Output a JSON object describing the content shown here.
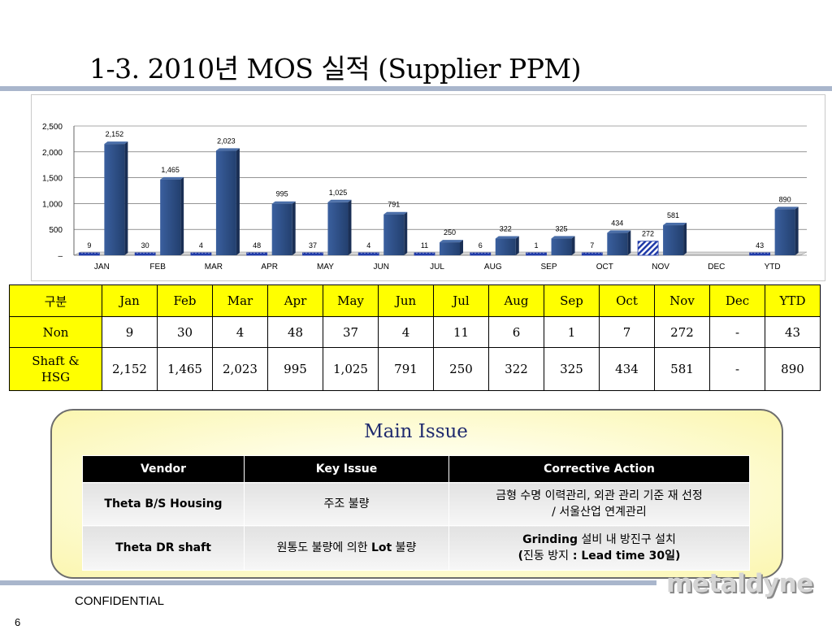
{
  "title": "1-3. 2010년 MOS 실적 (Supplier PPM)",
  "chart_data": {
    "type": "bar",
    "categories": [
      "JAN",
      "FEB",
      "MAR",
      "APR",
      "MAY",
      "JUN",
      "JUL",
      "AUG",
      "SEP",
      "OCT",
      "NOV",
      "DEC",
      "YTD"
    ],
    "series": [
      {
        "values": [
          9,
          30,
          4,
          48,
          37,
          4,
          11,
          6,
          1,
          7,
          272,
          null,
          43
        ],
        "color": "#1f3aa8",
        "pattern": "dots"
      },
      {
        "values": [
          2152,
          1465,
          2023,
          995,
          1025,
          791,
          250,
          322,
          325,
          434,
          581,
          null,
          890
        ],
        "color": "#2d4f88"
      }
    ],
    "nov_non_pattern": "diagonal-stripes",
    "ylim": [
      0,
      2500
    ],
    "yticks": [
      0,
      500,
      1000,
      1500,
      2000,
      2500
    ],
    "ytick_labels": [
      "–",
      "500",
      "1,000",
      "1,500",
      "2,000",
      "2,500"
    ],
    "data_labels": [
      [
        "9",
        "30",
        "4",
        "48",
        "37",
        "4",
        "11",
        "6",
        "1",
        "7",
        "272",
        "",
        "43"
      ],
      [
        "2,152",
        "1,465",
        "2,023",
        "995",
        "1,025",
        "791",
        "250",
        "322",
        "325",
        "434",
        "581",
        "",
        "890"
      ]
    ],
    "grid": true
  },
  "table": {
    "header": [
      "구분",
      "Jan",
      "Feb",
      "Mar",
      "Apr",
      "May",
      "Jun",
      "Jul",
      "Aug",
      "Sep",
      "Oct",
      "Nov",
      "Dec",
      "YTD"
    ],
    "rows": [
      {
        "label": "Non",
        "cells": [
          "9",
          "30",
          "4",
          "48",
          "37",
          "4",
          "11",
          "6",
          "1",
          "7",
          "272",
          "-",
          "43"
        ]
      },
      {
        "label_line1": "Shaft &",
        "label_line2": "HSG",
        "cells": [
          "2,152",
          "1,465",
          "2,023",
          "995",
          "1,025",
          "791",
          "250",
          "322",
          "325",
          "434",
          "581",
          "-",
          "890"
        ]
      }
    ]
  },
  "main_issue": {
    "title": "Main Issue",
    "headers": [
      "Vendor",
      "Key Issue",
      "Corrective Action"
    ],
    "rows": [
      {
        "vendor": "Theta B/S Housing",
        "issue": "주조 불량",
        "action_line1": "금형 수명 이력관리,  외관 관리 기준 재 선정",
        "action_line2": "/ 서울산업 연계관리"
      },
      {
        "vendor": "Theta DR shaft",
        "issue_pre": "원통도 불량에 의한 ",
        "issue_bold": "Lot",
        "issue_post": " 불량",
        "action_line1_bold": "Grinding",
        "action_line1_rest": " 설비 내 방진구 설치",
        "action_line2_pre": "(",
        "action_line2_kr": "진동 방지",
        "action_line2_bold": " : Lead time 30",
        "action_line2_post": "일)"
      }
    ]
  },
  "footer": {
    "confidential": "CONFIDENTIAL",
    "page": "6",
    "logo_text": "metaldyne"
  },
  "colors": {
    "accent_bar": "#a9b6cc",
    "table_header": "#ffff00",
    "bar_blue": "#2d4f88",
    "issue_title": "#1f2a6e"
  }
}
